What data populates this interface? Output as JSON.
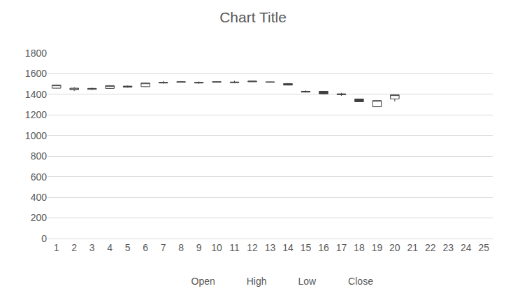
{
  "chart_data": {
    "type": "candlestick",
    "title": "Chart Title",
    "categories": [
      1,
      2,
      3,
      4,
      5,
      6,
      7,
      8,
      9,
      10,
      11,
      12,
      13,
      14,
      15,
      16,
      17,
      18,
      19,
      20,
      21,
      22,
      23,
      24,
      25
    ],
    "series": [
      {
        "name": "Open",
        "values": [
          1460,
          1445,
          1448,
          1458,
          1480,
          1475,
          1510,
          1518,
          1510,
          1518,
          1520,
          1522,
          1522,
          1505,
          1430,
          1430,
          1405,
          1355,
          1280,
          1355,
          null,
          null,
          null,
          null,
          null
        ]
      },
      {
        "name": "High",
        "values": [
          1492,
          1470,
          1465,
          1488,
          1485,
          1512,
          1530,
          1525,
          1525,
          1526,
          1532,
          1530,
          1525,
          1510,
          1438,
          1432,
          1415,
          1358,
          1342,
          1398,
          null,
          null,
          null,
          null,
          null
        ]
      },
      {
        "name": "Low",
        "values": [
          1458,
          1432,
          1440,
          1455,
          1465,
          1472,
          1505,
          1515,
          1502,
          1515,
          1510,
          1520,
          1515,
          1487,
          1418,
          1398,
          1385,
          1325,
          1278,
          1330,
          null,
          null,
          null,
          null,
          null
        ]
      },
      {
        "name": "Close",
        "values": [
          1490,
          1460,
          1458,
          1485,
          1470,
          1510,
          1518,
          1522,
          1518,
          1522,
          1515,
          1528,
          1518,
          1490,
          1422,
          1405,
          1398,
          1328,
          1340,
          1395,
          null,
          null,
          null,
          null,
          null
        ]
      }
    ],
    "ylim": [
      0,
      1800
    ],
    "yticks": [
      0,
      200,
      400,
      600,
      800,
      1000,
      1200,
      1400,
      1600,
      1800
    ],
    "grid": true,
    "legend": "bottom"
  }
}
